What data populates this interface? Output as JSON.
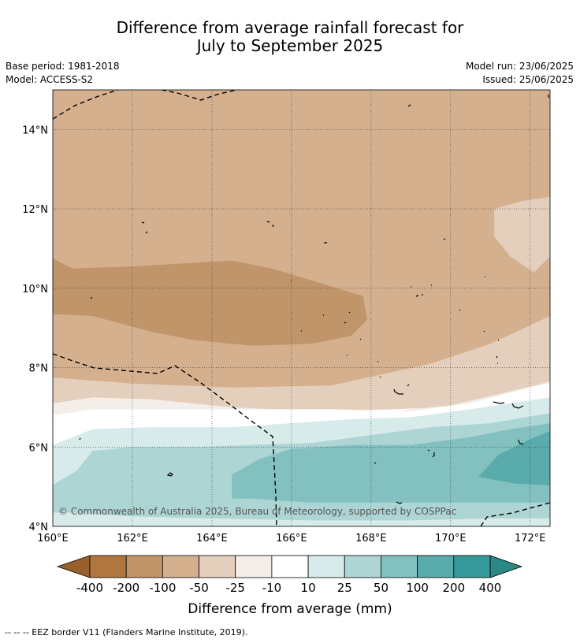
{
  "header": {
    "title_line1": "Difference from average rainfall forecast for",
    "title_line2": "July to September 2025",
    "base_period": "Base period: 1981-2018",
    "model": "Model: ACCESS-S2",
    "model_run": "Model run: 23/06/2025",
    "issued": "Issued: 25/06/2025"
  },
  "map": {
    "copyright": "© Commonwealth of Australia 2025, Bureau of Meteorology, supported by COSPPac",
    "lon_ticks": [
      {
        "value": 160,
        "label": "160°E"
      },
      {
        "value": 162,
        "label": "162°E"
      },
      {
        "value": 164,
        "label": "164°E"
      },
      {
        "value": 166,
        "label": "166°E"
      },
      {
        "value": 168,
        "label": "168°E"
      },
      {
        "value": 170,
        "label": "170°E"
      },
      {
        "value": 172,
        "label": "172°E"
      }
    ],
    "lat_ticks": [
      {
        "value": 4,
        "label": "4°N"
      },
      {
        "value": 6,
        "label": "6°N"
      },
      {
        "value": 8,
        "label": "8°N"
      },
      {
        "value": 10,
        "label": "10°N"
      },
      {
        "value": 12,
        "label": "12°N"
      },
      {
        "value": 14,
        "label": "14°N"
      }
    ]
  },
  "chart_data": {
    "type": "heatmap",
    "title": "Difference from average rainfall forecast for July to September 2025",
    "xlim": [
      160,
      172.5
    ],
    "ylim": [
      4,
      15
    ],
    "grid": true,
    "colorbar": {
      "label": "Difference from average (mm)",
      "ticks": [
        "-400",
        "-200",
        "-100",
        "-50",
        "-25",
        "-10",
        "10",
        "25",
        "50",
        "100",
        "200",
        "400"
      ],
      "colors": [
        "#9a5e2a",
        "#af773f",
        "#c1956a",
        "#d4b08f",
        "#e4cfbc",
        "#f3eee8",
        "#ffffff",
        "#d6ebea",
        "#acd5d4",
        "#83c1c0",
        "#5aabab",
        "#359a99",
        "#2a8887"
      ]
    },
    "regions": [
      {
        "class": "-50 to -25",
        "color": "#e4cfbc",
        "points": [
          [
            160,
            15
          ],
          [
            172.5,
            15
          ],
          [
            172.5,
            7.6
          ],
          [
            170,
            7
          ],
          [
            167,
            6.9
          ],
          [
            164,
            7
          ],
          [
            162,
            7.15
          ],
          [
            160,
            7.1
          ]
        ]
      },
      {
        "class": "-100 to -50",
        "color": "#d4b08f",
        "points": [
          [
            160,
            15
          ],
          [
            172.5,
            15
          ],
          [
            172.5,
            12.3
          ],
          [
            171.8,
            12.2
          ],
          [
            171.1,
            12
          ],
          [
            171.1,
            11.3
          ],
          [
            171.5,
            10.8
          ],
          [
            172.1,
            10.4
          ],
          [
            172.5,
            10.8
          ],
          [
            172.5,
            9.3
          ],
          [
            171,
            8.6
          ],
          [
            169.5,
            8.1
          ],
          [
            167,
            7.55
          ],
          [
            164.5,
            7.5
          ],
          [
            162,
            7.6
          ],
          [
            160,
            7.75
          ]
        ]
      },
      {
        "class": "-200 to -100",
        "color": "#c1956a",
        "points": [
          [
            160,
            10.75
          ],
          [
            160.5,
            10.5
          ],
          [
            162,
            10.55
          ],
          [
            164.5,
            10.7
          ],
          [
            165.5,
            10.5
          ],
          [
            166.5,
            10.2
          ],
          [
            167.8,
            9.8
          ],
          [
            167.9,
            9.2
          ],
          [
            167.5,
            8.8
          ],
          [
            166.5,
            8.6
          ],
          [
            165,
            8.55
          ],
          [
            163.5,
            8.7
          ],
          [
            162.5,
            8.9
          ],
          [
            161,
            9.3
          ],
          [
            160,
            9.35
          ]
        ]
      },
      {
        "class": "-25 to -10",
        "color": "#f3eee8",
        "points": [
          [
            160,
            7.1
          ],
          [
            161,
            7.25
          ],
          [
            162.5,
            7.2
          ],
          [
            164.5,
            7
          ],
          [
            166.5,
            6.9
          ],
          [
            168.5,
            6.9
          ],
          [
            170,
            7.05
          ],
          [
            171.5,
            7.4
          ],
          [
            172.5,
            7.65
          ],
          [
            172.5,
            4
          ],
          [
            160,
            4
          ]
        ]
      },
      {
        "class": "-10 to 10",
        "color": "#ffffff",
        "points": [
          [
            160,
            6.8
          ],
          [
            161,
            6.95
          ],
          [
            163,
            6.95
          ],
          [
            165,
            6.95
          ],
          [
            167,
            6.95
          ],
          [
            169,
            6.9
          ],
          [
            170.5,
            7.1
          ],
          [
            172,
            7.5
          ],
          [
            172.5,
            7.6
          ],
          [
            172.5,
            4
          ],
          [
            160,
            4
          ]
        ]
      },
      {
        "class": "10 to 25",
        "color": "#d6ebea",
        "points": [
          [
            160,
            6.05
          ],
          [
            161,
            6.45
          ],
          [
            162.5,
            6.5
          ],
          [
            164.5,
            6.5
          ],
          [
            166,
            6.6
          ],
          [
            167.5,
            6.7
          ],
          [
            169,
            6.75
          ],
          [
            170.5,
            6.95
          ],
          [
            172.5,
            7.25
          ],
          [
            172.5,
            4
          ],
          [
            160,
            4
          ]
        ]
      },
      {
        "class": "25 to 50",
        "color": "#acd5d4",
        "points": [
          [
            160,
            5.05
          ],
          [
            160.6,
            5.4
          ],
          [
            161,
            5.9
          ],
          [
            162,
            6
          ],
          [
            163.5,
            6
          ],
          [
            165,
            6.05
          ],
          [
            166.5,
            6.1
          ],
          [
            168,
            6.3
          ],
          [
            169.5,
            6.5
          ],
          [
            171,
            6.6
          ],
          [
            172.5,
            6.85
          ],
          [
            172.5,
            4.2
          ],
          [
            171,
            4.2
          ],
          [
            169,
            4.15
          ],
          [
            166.5,
            4.15
          ],
          [
            164,
            4.2
          ],
          [
            162,
            4.25
          ],
          [
            160.5,
            4.35
          ],
          [
            160,
            4.35
          ]
        ]
      },
      {
        "class": "50 to 100",
        "color": "#83c1c0",
        "points": [
          [
            164.5,
            4.7
          ],
          [
            164.5,
            5.3
          ],
          [
            165.2,
            5.7
          ],
          [
            166,
            5.95
          ],
          [
            167.5,
            6.05
          ],
          [
            169,
            6.05
          ],
          [
            170.5,
            6.25
          ],
          [
            171.5,
            6.45
          ],
          [
            172.5,
            6.6
          ],
          [
            172.5,
            4.6
          ],
          [
            171,
            4.6
          ],
          [
            169.5,
            4.6
          ],
          [
            168,
            4.6
          ],
          [
            166.5,
            4.6
          ],
          [
            165,
            4.7
          ]
        ]
      },
      {
        "class": "100 to 200",
        "color": "#5aabab",
        "points": [
          [
            170.7,
            5.25
          ],
          [
            171.2,
            5.8
          ],
          [
            172,
            6.2
          ],
          [
            172.5,
            6.4
          ],
          [
            172.5,
            5.03
          ],
          [
            171.6,
            5.08
          ]
        ]
      }
    ],
    "overlays": [
      {
        "name": "EEZ border V11 (Flanders Marine Institute, 2019)",
        "style": "dashed"
      }
    ]
  },
  "footer": {
    "legend_text": "--  --  -- EEZ border V11 (Flanders Marine Institute, 2019)."
  }
}
